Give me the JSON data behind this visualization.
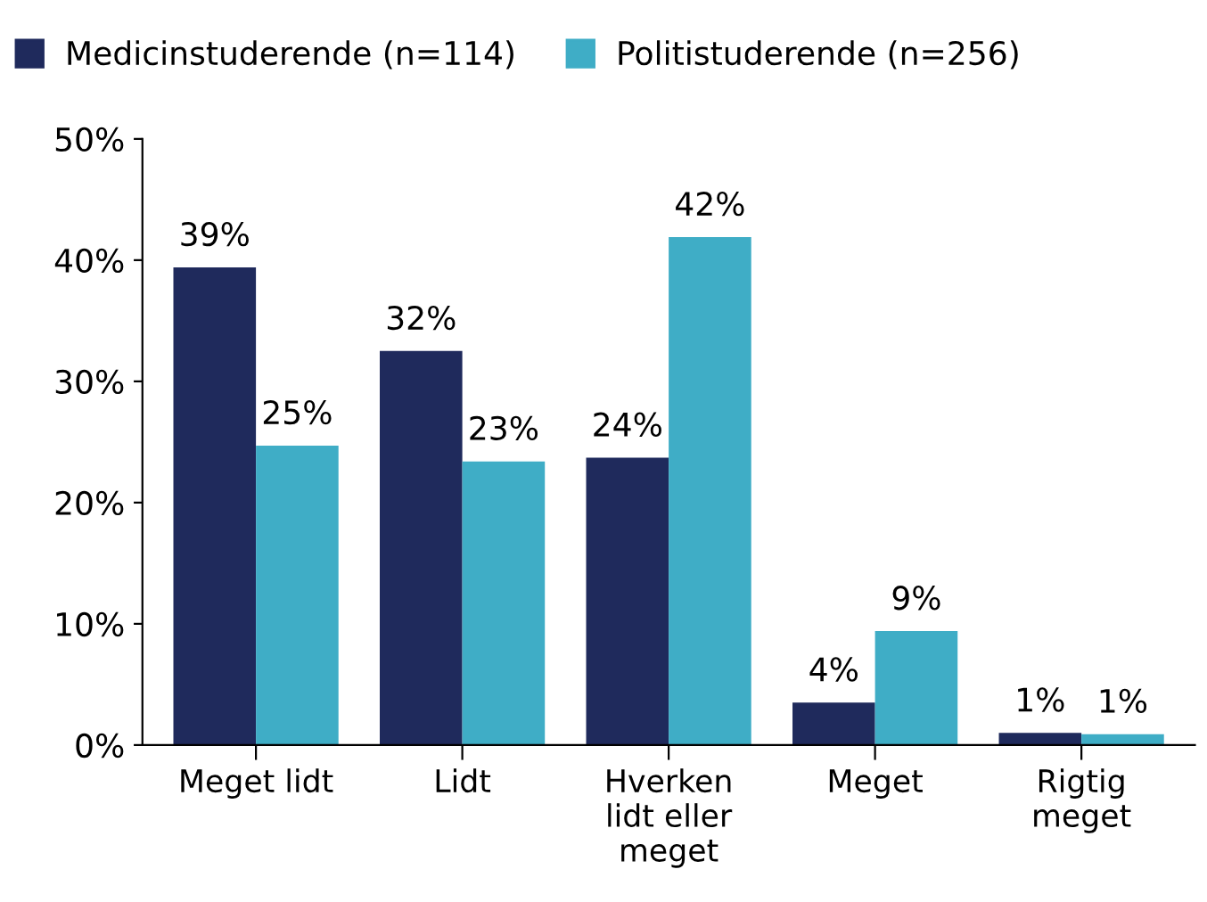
{
  "chart_data": {
    "type": "bar",
    "categories": [
      "Meget lidt",
      "Lidt",
      "Hverken\nlidt eller\nmeget",
      "Meget",
      "Rigtig\nmeget"
    ],
    "series": [
      {
        "name": "Medicinstuderende (n=114)",
        "color": "#1f2a5c",
        "values": [
          39.4,
          32.5,
          23.7,
          3.5,
          1.0
        ],
        "value_labels": [
          "39%",
          "32%",
          "24%",
          "4%",
          "1%"
        ]
      },
      {
        "name": "Politistuderende (n=256)",
        "color": "#3fadc6",
        "values": [
          24.7,
          23.4,
          41.9,
          9.4,
          0.9
        ],
        "value_labels": [
          "25%",
          "23%",
          "42%",
          "9%",
          "1%"
        ]
      }
    ],
    "ylim": [
      0,
      50
    ],
    "yticks": [
      {
        "value": 0,
        "label": "0%"
      },
      {
        "value": 10,
        "label": "10%"
      },
      {
        "value": 20,
        "label": "20%"
      },
      {
        "value": 30,
        "label": "30%"
      },
      {
        "value": 40,
        "label": "40%"
      },
      {
        "value": 50,
        "label": "50%"
      }
    ],
    "grid": false,
    "legend": "top left"
  }
}
